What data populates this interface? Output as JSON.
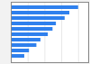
{
  "chart_data": {
    "type": "bar",
    "orientation": "horizontal",
    "categories": [
      null,
      null,
      null,
      null,
      null,
      null,
      null,
      null,
      null,
      null
    ],
    "values": [
      100,
      87,
      80,
      67,
      62,
      55,
      44,
      38,
      27,
      20
    ],
    "color": "#2f80ed",
    "xlim": [
      0,
      115
    ],
    "xticks": [
      25,
      50,
      75,
      100
    ],
    "grid": true,
    "tick_labels": false
  }
}
